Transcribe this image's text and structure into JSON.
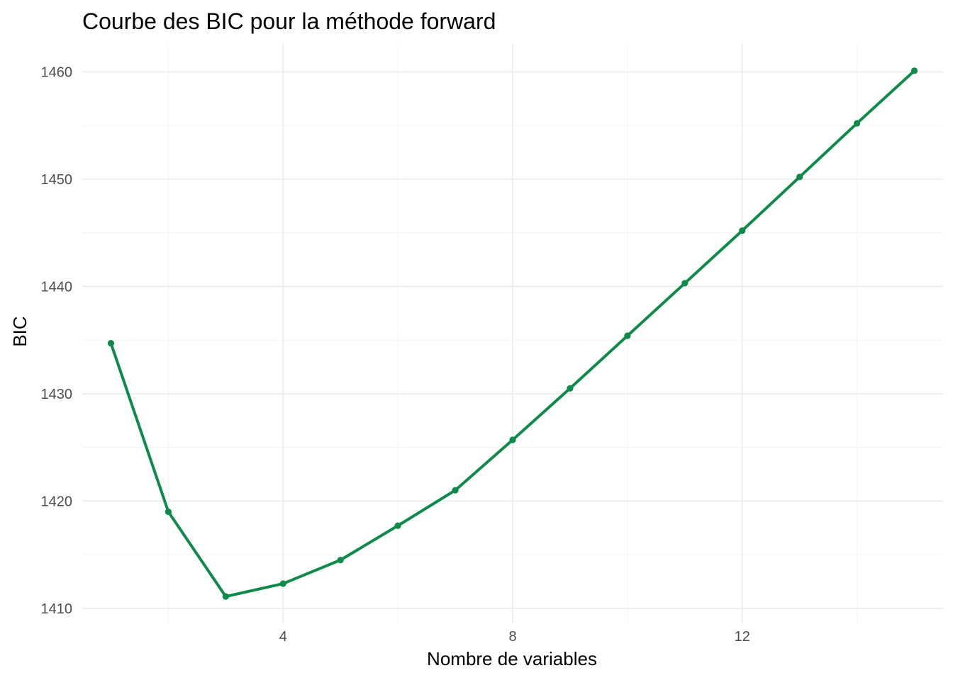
{
  "chart_data": {
    "type": "line",
    "title": "Courbe des BIC pour la méthode forward",
    "xlabel": "Nombre de variables",
    "ylabel": "BIC",
    "x": [
      1,
      2,
      3,
      4,
      5,
      6,
      7,
      8,
      9,
      10,
      11,
      12,
      13,
      14,
      15
    ],
    "series": [
      {
        "values": [
          1434.7,
          1419.0,
          1411.1,
          1412.3,
          1414.5,
          1417.7,
          1421.0,
          1425.7,
          1430.5,
          1435.4,
          1440.3,
          1445.2,
          1450.2,
          1455.2,
          1460.1
        ],
        "color": "#0e8a4a"
      }
    ],
    "xlim": [
      0.5,
      15.5
    ],
    "ylim": [
      1408.6,
      1462.6
    ],
    "x_ticks": [
      4,
      8,
      12
    ],
    "x_tick_labels": [
      "4",
      "8",
      "12"
    ],
    "y_ticks": [
      1410,
      1420,
      1430,
      1440,
      1450,
      1460
    ],
    "y_tick_labels": [
      "1410",
      "1420",
      "1430",
      "1440",
      "1450",
      "1460"
    ],
    "grid": true,
    "legend": "none"
  }
}
